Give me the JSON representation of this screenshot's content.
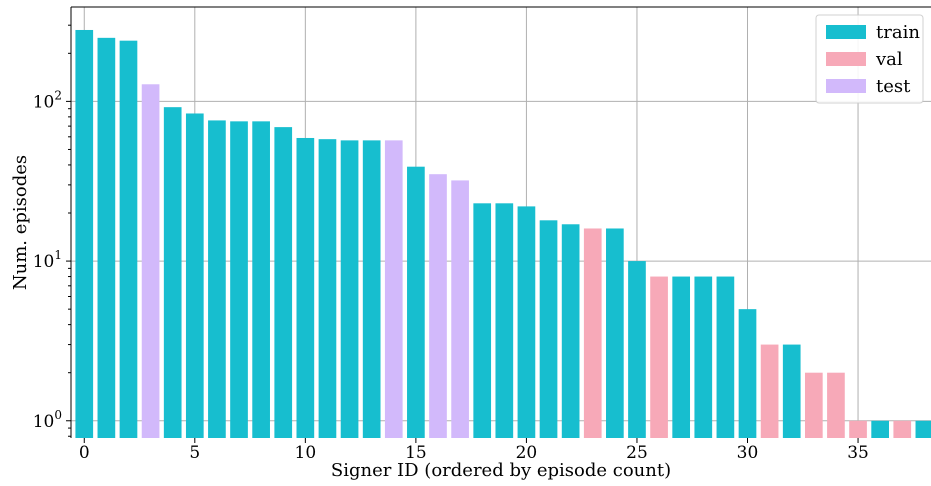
{
  "chart_data": {
    "type": "bar",
    "xlabel": "Signer ID (ordered by episode count)",
    "ylabel": "Num. episodes",
    "yscale": "log",
    "ylim": [
      0.78,
      390
    ],
    "xlim": [
      -0.6,
      38.3
    ],
    "x_ticks": [
      0,
      5,
      10,
      15,
      20,
      25,
      30,
      35
    ],
    "y_ticks": [
      {
        "value": 1,
        "base": "10",
        "exp": "0"
      },
      {
        "value": 10,
        "base": "10",
        "exp": "1"
      },
      {
        "value": 100,
        "base": "10",
        "exp": "2"
      }
    ],
    "grid": true,
    "legend_position": "top-right",
    "series": [
      {
        "name": "train",
        "color": "#17becf"
      },
      {
        "name": "val",
        "color": "#f7a9b8"
      },
      {
        "name": "test",
        "color": "#d2b9fb"
      }
    ],
    "bars": [
      {
        "x": 0,
        "value": 280,
        "split": "train"
      },
      {
        "x": 1,
        "value": 250,
        "split": "train"
      },
      {
        "x": 2,
        "value": 240,
        "split": "train"
      },
      {
        "x": 3,
        "value": 128,
        "split": "test"
      },
      {
        "x": 4,
        "value": 92,
        "split": "train"
      },
      {
        "x": 5,
        "value": 84,
        "split": "train"
      },
      {
        "x": 6,
        "value": 76,
        "split": "train"
      },
      {
        "x": 7,
        "value": 75,
        "split": "train"
      },
      {
        "x": 8,
        "value": 75,
        "split": "train"
      },
      {
        "x": 9,
        "value": 69,
        "split": "train"
      },
      {
        "x": 10,
        "value": 59,
        "split": "train"
      },
      {
        "x": 11,
        "value": 58,
        "split": "train"
      },
      {
        "x": 12,
        "value": 57,
        "split": "train"
      },
      {
        "x": 13,
        "value": 57,
        "split": "train"
      },
      {
        "x": 14,
        "value": 57,
        "split": "test"
      },
      {
        "x": 15,
        "value": 39,
        "split": "train"
      },
      {
        "x": 16,
        "value": 35,
        "split": "test"
      },
      {
        "x": 17,
        "value": 32,
        "split": "test"
      },
      {
        "x": 18,
        "value": 23,
        "split": "train"
      },
      {
        "x": 19,
        "value": 23,
        "split": "train"
      },
      {
        "x": 20,
        "value": 22,
        "split": "train"
      },
      {
        "x": 21,
        "value": 18,
        "split": "train"
      },
      {
        "x": 22,
        "value": 17,
        "split": "train"
      },
      {
        "x": 23,
        "value": 16,
        "split": "val"
      },
      {
        "x": 24,
        "value": 16,
        "split": "train"
      },
      {
        "x": 25,
        "value": 10,
        "split": "train"
      },
      {
        "x": 26,
        "value": 8,
        "split": "val"
      },
      {
        "x": 27,
        "value": 8,
        "split": "train"
      },
      {
        "x": 28,
        "value": 8,
        "split": "train"
      },
      {
        "x": 29,
        "value": 8,
        "split": "train"
      },
      {
        "x": 30,
        "value": 5,
        "split": "train"
      },
      {
        "x": 31,
        "value": 3,
        "split": "val"
      },
      {
        "x": 32,
        "value": 3,
        "split": "train"
      },
      {
        "x": 33,
        "value": 2,
        "split": "val"
      },
      {
        "x": 34,
        "value": 2,
        "split": "val"
      },
      {
        "x": 35,
        "value": 1,
        "split": "val"
      },
      {
        "x": 36,
        "value": 1,
        "split": "train"
      },
      {
        "x": 37,
        "value": 1,
        "split": "val"
      },
      {
        "x": 38,
        "value": 1,
        "split": "train"
      }
    ]
  }
}
